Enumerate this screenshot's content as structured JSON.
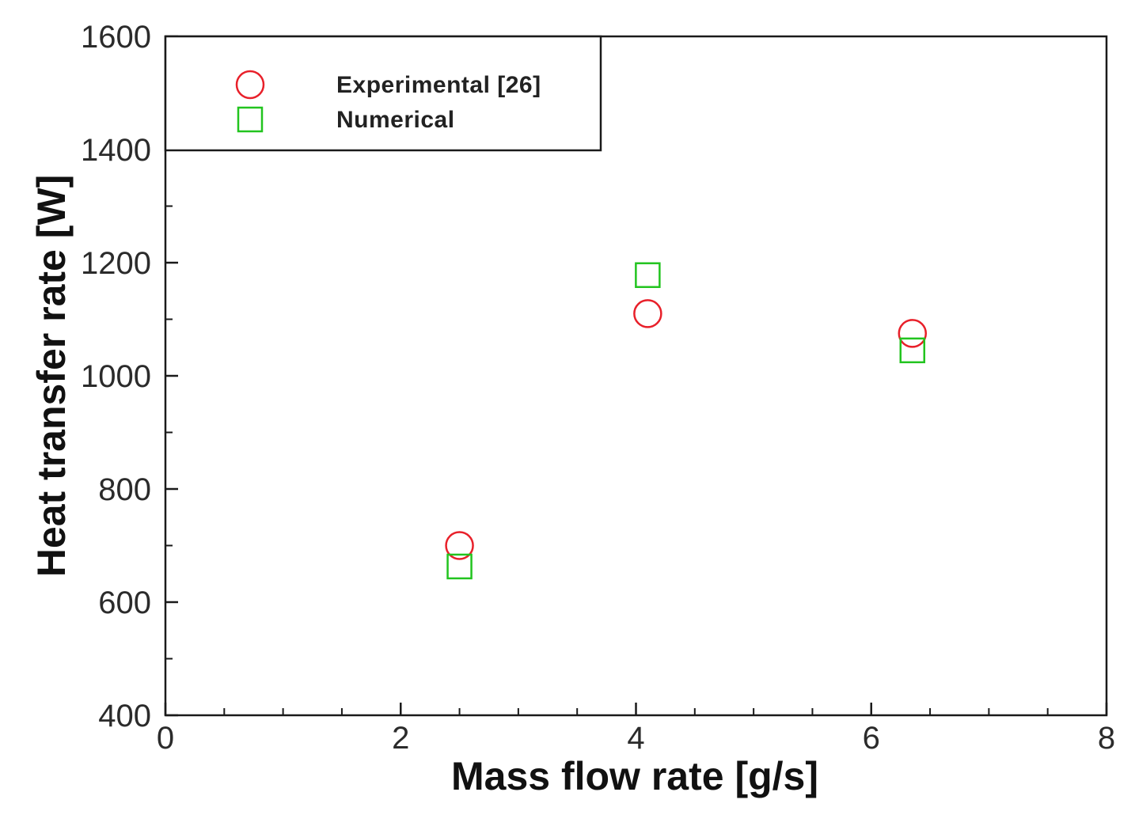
{
  "chart_data": {
    "type": "scatter",
    "title": "",
    "xlabel": "Mass flow rate [g/s]",
    "ylabel": "Heat transfer rate [W]",
    "xlim": [
      0,
      8
    ],
    "ylim": [
      400,
      1600
    ],
    "xticks": [
      0,
      2,
      4,
      6,
      8
    ],
    "yticks": [
      400,
      600,
      800,
      1000,
      1200,
      1400,
      1600
    ],
    "x_minor_step": 0.5,
    "y_minor_step": 100,
    "grid": false,
    "legend_position": "top-left",
    "series": [
      {
        "name": "Experimental [26]",
        "marker": "circle",
        "color": "#e8202a",
        "points": [
          {
            "x": 2.5,
            "y": 700
          },
          {
            "x": 4.1,
            "y": 1110
          },
          {
            "x": 6.35,
            "y": 1075
          }
        ]
      },
      {
        "name": "Numerical",
        "marker": "square",
        "color": "#22c41f",
        "points": [
          {
            "x": 2.5,
            "y": 663
          },
          {
            "x": 4.1,
            "y": 1178
          },
          {
            "x": 6.35,
            "y": 1045
          }
        ]
      }
    ]
  }
}
